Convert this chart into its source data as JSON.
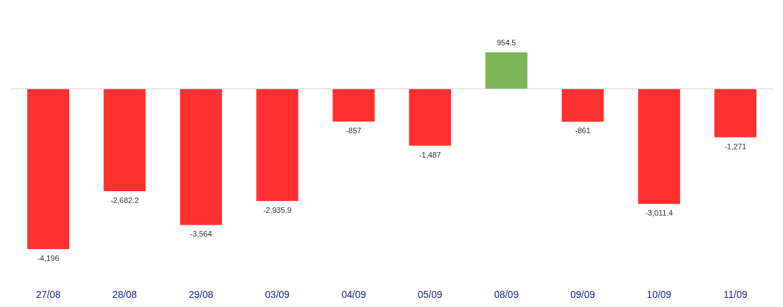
{
  "chart_data": {
    "type": "bar",
    "categories": [
      "27/08",
      "28/08",
      "29/08",
      "03/09",
      "04/09",
      "05/09",
      "08/09",
      "09/09",
      "10/09",
      "11/09"
    ],
    "values": [
      -4196,
      -2682.2,
      -3564,
      -2935.9,
      -857,
      -1487,
      954.5,
      -861,
      -3011.4,
      -1271
    ],
    "value_labels": [
      "-4,196",
      "-2,682.2",
      "-3,564",
      "-2,935.9",
      "-857",
      "-1,487",
      "954.5",
      "-861",
      "-3,011.4",
      "-1,271"
    ],
    "colors": [
      "#ff3030",
      "#ff3030",
      "#ff3030",
      "#ff3030",
      "#ff3030",
      "#ff3030",
      "#7bb558",
      "#ff3030",
      "#ff3030",
      "#ff3030"
    ],
    "grid": false
  }
}
